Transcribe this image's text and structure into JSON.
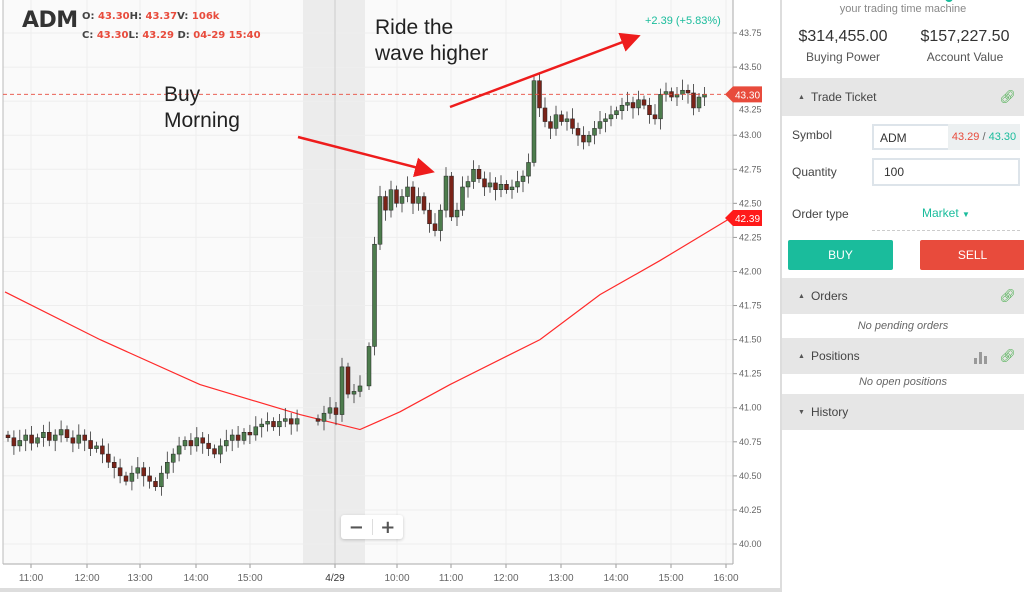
{
  "header": {
    "symbol": "ADM",
    "o_label": "O:",
    "o": "43.30",
    "h_label": "H:",
    "h": "43.37",
    "v_label": "V:",
    "v": "106k",
    "c_label": "C:",
    "c": "43.30",
    "l_label": "L:",
    "l": "43.29",
    "d_label": "D:",
    "d": "04-29 15:40"
  },
  "chart": {
    "change": "+2.39 (+5.83%)",
    "last_price_tag": "43.30",
    "ma_price_tag": "42.39",
    "annotation_buy": [
      "Buy",
      "Morning"
    ],
    "annotation_ride": [
      "Ride the",
      "wave higher"
    ],
    "zoom_out": "−",
    "zoom_in": "+",
    "colors": {
      "up": "#4d7c4d",
      "down": "#7a2318",
      "ma": "#ff2a2a",
      "tag": "#e84b3c",
      "arrow": "#ee1c1c"
    }
  },
  "chart_data": {
    "type": "candlestick",
    "y_ticks": [
      "43.75",
      "43.50",
      "43.25",
      "43.00",
      "42.75",
      "42.50",
      "42.25",
      "42.00",
      "41.75",
      "41.50",
      "41.25",
      "41.00",
      "40.75",
      "40.50",
      "40.25",
      "40.00"
    ],
    "ylim": [
      40.0,
      43.75
    ],
    "x_ticks": [
      "11:00",
      "12:00",
      "13:00",
      "14:00",
      "15:00",
      "4/29",
      "10:00",
      "11:00",
      "12:00",
      "13:00",
      "14:00",
      "15:00",
      "16:00"
    ],
    "grid": true,
    "day1_closes": [
      40.78,
      40.72,
      40.76,
      40.8,
      40.74,
      40.78,
      40.82,
      40.76,
      40.8,
      40.84,
      40.78,
      40.74,
      40.8,
      40.76,
      40.7,
      40.72,
      40.66,
      40.6,
      40.56,
      40.5,
      40.46,
      40.52,
      40.56,
      40.5,
      40.46,
      40.42,
      40.52,
      40.6,
      40.66,
      40.72,
      40.76,
      40.72,
      40.78,
      40.74,
      40.7,
      40.66,
      40.72,
      40.76,
      40.8,
      40.76,
      40.82,
      40.8,
      40.86,
      40.88,
      40.9,
      40.86,
      40.9,
      40.92,
      40.88,
      40.92
    ],
    "premarket_closes": [
      40.9,
      40.96,
      41.0,
      40.95,
      41.3,
      41.1,
      41.12,
      41.16
    ],
    "day2_closes": [
      41.45,
      42.2,
      42.55,
      42.45,
      42.6,
      42.5,
      42.55,
      42.62,
      42.5,
      42.55,
      42.45,
      42.35,
      42.3,
      42.45,
      42.7,
      42.4,
      42.45,
      42.62,
      42.66,
      42.75,
      42.68,
      42.62,
      42.65,
      42.6,
      42.64,
      42.6,
      42.62,
      42.66,
      42.7,
      42.8,
      43.4,
      43.2,
      43.1,
      43.05,
      43.15,
      43.1,
      43.12,
      43.05,
      43.0,
      42.95,
      43.0,
      43.05,
      43.1,
      43.12,
      43.15,
      43.18,
      43.22,
      43.24,
      43.2,
      43.26,
      43.22,
      43.15,
      43.12,
      43.3,
      43.32,
      43.28,
      43.3,
      43.33,
      43.31,
      43.2,
      43.28,
      43.3
    ],
    "moving_average": [
      41.85,
      41.5,
      41.17,
      40.95,
      40.84,
      40.97,
      41.17,
      41.5,
      41.83,
      42.08,
      42.39
    ]
  },
  "panel": {
    "tagline": "your trading time machine",
    "buying_power": "$314,455.00",
    "buying_power_label": "Buying Power",
    "account_value": "$157,227.50",
    "account_value_label": "Account Value",
    "trade_ticket": "Trade Ticket",
    "symbol_label": "Symbol",
    "symbol_value": "ADM",
    "bid": "43.29",
    "ask": "43.30",
    "quote_sep": " / ",
    "quantity_label": "Quantity",
    "quantity_value": "100",
    "order_type_label": "Order type",
    "order_type_value": "Market",
    "buy": "BUY",
    "sell": "SELL",
    "orders": "Orders",
    "orders_empty": "No pending orders",
    "positions": "Positions",
    "positions_empty": "No open positions",
    "history": "History"
  }
}
